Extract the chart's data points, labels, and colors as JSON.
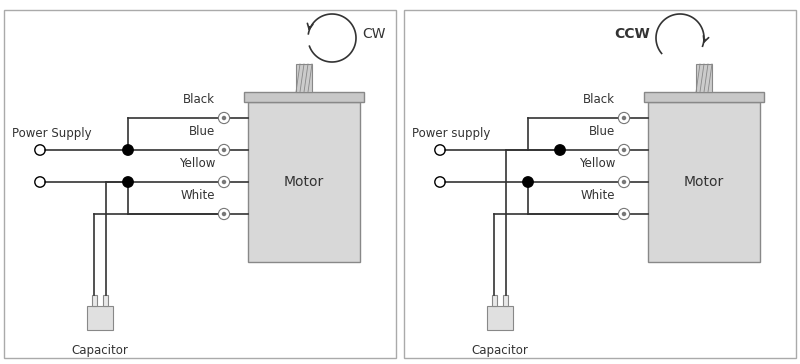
{
  "bg_color": "#ffffff",
  "border_color": "#bbbbbb",
  "motor_fill": "#d8d8d8",
  "motor_cap_fill": "#c8c8c8",
  "shaft_fill": "#cccccc",
  "cap_body_fill": "#e0e0e0",
  "wire_labels": [
    "Black",
    "Blue",
    "Yellow",
    "White"
  ],
  "cw_label": "CW",
  "ccw_label": "CCW",
  "ps_label_left": "Power Supply",
  "ps_label_right": "Power supply",
  "motor_label": "Motor",
  "cap_label": "Capacitor",
  "line_color": "#333333",
  "text_color": "#333333",
  "terminal_color": "#777777"
}
